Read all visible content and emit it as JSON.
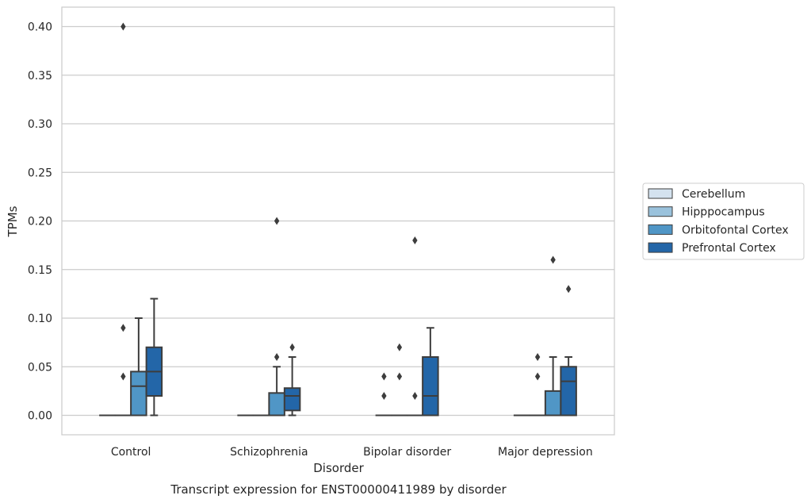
{
  "chart_data": {
    "type": "boxplot",
    "xlabel": "Disorder",
    "ylabel": "TPMs",
    "caption": "Transcript expression for ENST00000411989 by disorder",
    "categories": [
      "Control",
      "Schizophrenia",
      "Bipolar disorder",
      "Major depression"
    ],
    "ylim": [
      -0.02,
      0.42
    ],
    "yticks": [
      "0.00",
      "0.05",
      "0.10",
      "0.15",
      "0.20",
      "0.25",
      "0.30",
      "0.35",
      "0.40"
    ],
    "ytick_values": [
      0.0,
      0.05,
      0.1,
      0.15,
      0.2,
      0.25,
      0.3,
      0.35,
      0.4
    ],
    "grid": "horizontal",
    "legend_position": "right-outside",
    "series": [
      {
        "name": "Cerebellum",
        "color": "#d4e2ef",
        "boxes": [
          {
            "q1": 0,
            "median": 0,
            "q3": 0,
            "whisker_low": 0,
            "whisker_high": 0,
            "outliers": []
          },
          {
            "q1": 0,
            "median": 0,
            "q3": 0,
            "whisker_low": 0,
            "whisker_high": 0,
            "outliers": []
          },
          {
            "q1": 0,
            "median": 0,
            "q3": 0,
            "whisker_low": 0,
            "whisker_high": 0,
            "outliers": [
              0.02,
              0.04
            ]
          },
          {
            "q1": 0,
            "median": 0,
            "q3": 0,
            "whisker_low": 0,
            "whisker_high": 0,
            "outliers": []
          }
        ]
      },
      {
        "name": "Hipppocampus",
        "color": "#9ac2dc",
        "boxes": [
          {
            "q1": 0,
            "median": 0,
            "q3": 0,
            "whisker_low": 0,
            "whisker_high": 0,
            "outliers": [
              0.04,
              0.09,
              0.4
            ]
          },
          {
            "q1": 0,
            "median": 0,
            "q3": 0,
            "whisker_low": 0,
            "whisker_high": 0,
            "outliers": []
          },
          {
            "q1": 0,
            "median": 0,
            "q3": 0,
            "whisker_low": 0,
            "whisker_high": 0,
            "outliers": [
              0.04,
              0.07
            ]
          },
          {
            "q1": 0,
            "median": 0,
            "q3": 0,
            "whisker_low": 0,
            "whisker_high": 0,
            "outliers": [
              0.04,
              0.06
            ]
          }
        ]
      },
      {
        "name": "Orbitofontal Cortex",
        "color": "#5096c6",
        "boxes": [
          {
            "q1": 0,
            "median": 0.03,
            "q3": 0.045,
            "whisker_low": 0,
            "whisker_high": 0.1,
            "outliers": []
          },
          {
            "q1": 0,
            "median": 0,
            "q3": 0.023,
            "whisker_low": 0,
            "whisker_high": 0.05,
            "outliers": [
              0.06,
              0.2
            ]
          },
          {
            "q1": 0,
            "median": 0,
            "q3": 0,
            "whisker_low": 0,
            "whisker_high": 0,
            "outliers": [
              0.02,
              0.18
            ]
          },
          {
            "q1": 0,
            "median": 0,
            "q3": 0.025,
            "whisker_low": 0,
            "whisker_high": 0.06,
            "outliers": [
              0.16
            ]
          }
        ]
      },
      {
        "name": "Prefrontal Cortex",
        "color": "#2366a8",
        "boxes": [
          {
            "q1": 0.02,
            "median": 0.045,
            "q3": 0.07,
            "whisker_low": 0,
            "whisker_high": 0.12,
            "outliers": []
          },
          {
            "q1": 0.005,
            "median": 0.02,
            "q3": 0.028,
            "whisker_low": 0,
            "whisker_high": 0.06,
            "outliers": [
              0.07
            ]
          },
          {
            "q1": 0,
            "median": 0.02,
            "q3": 0.06,
            "whisker_low": 0,
            "whisker_high": 0.09,
            "outliers": []
          },
          {
            "q1": 0,
            "median": 0.035,
            "q3": 0.05,
            "whisker_low": 0,
            "whisker_high": 0.06,
            "outliers": [
              0.13
            ]
          }
        ]
      }
    ]
  }
}
